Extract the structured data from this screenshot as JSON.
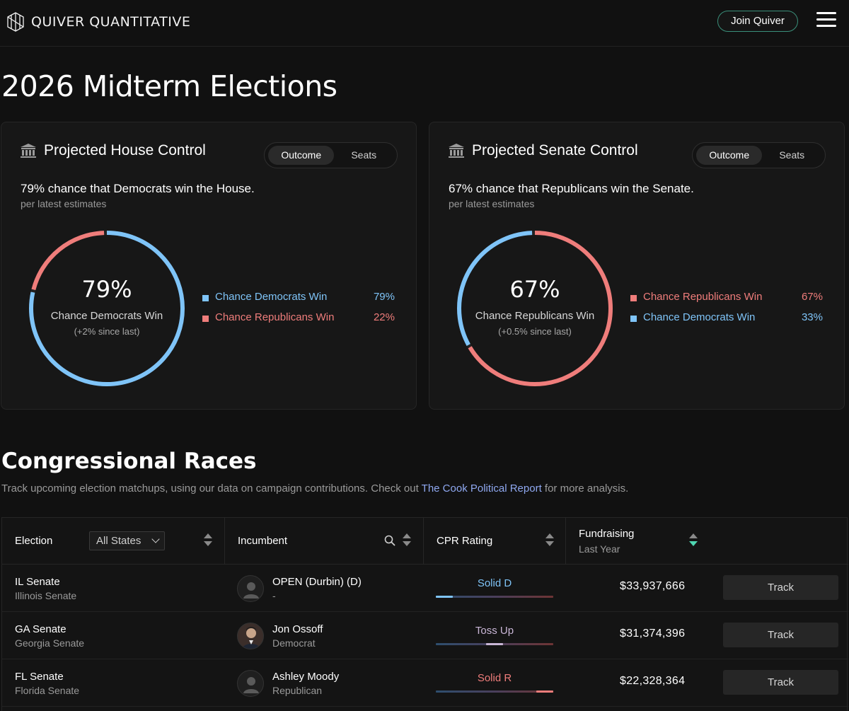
{
  "header": {
    "brand": "QUIVER QUANTITATIVE",
    "join_label": "Join Quiver"
  },
  "page_title": "2026 Midterm Elections",
  "house": {
    "title": "Projected House Control",
    "toggle": [
      "Outcome",
      "Seats"
    ],
    "stat": "79% chance that Democrats win the House.",
    "sub": "per latest estimates",
    "center_pct": "79%",
    "center_label": "Chance Democrats Win",
    "center_delta": "(+2% since last)",
    "legend": [
      {
        "label": "Chance Democrats Win",
        "value": "79%",
        "color": "#7fc4f8"
      },
      {
        "label": "Chance Republicans Win",
        "value": "22%",
        "color": "#ef7d7b"
      }
    ],
    "chart_fraction_primary": 0.79
  },
  "senate": {
    "title": "Projected Senate Control",
    "toggle": [
      "Outcome",
      "Seats"
    ],
    "stat": "67% chance that Republicans win the Senate.",
    "sub": "per latest estimates",
    "center_pct": "67%",
    "center_label": "Chance Republicans Win",
    "center_delta": "(+0.5% since last)",
    "legend": [
      {
        "label": "Chance Republicans Win",
        "value": "67%",
        "color": "#ef7d7b"
      },
      {
        "label": "Chance Democrats Win",
        "value": "33%",
        "color": "#7fc4f8"
      }
    ],
    "chart_fraction_primary": 0.67
  },
  "races": {
    "title": "Congressional Races",
    "desc_before": "Track upcoming election matchups, using our data on campaign contributions. Check out ",
    "desc_link": "The Cook Political Report",
    "desc_after": " for more analysis.",
    "columns": {
      "election": "Election",
      "state_filter": "All States",
      "incumbent": "Incumbent",
      "rating": "CPR Rating",
      "fundraising": "Fundraising",
      "fundraising_sub": "Last Year"
    },
    "rows": [
      {
        "race": "IL Senate",
        "race_sub": "Illinois Senate",
        "incumbent": "OPEN (Durbin) (D)",
        "incumbent_sub": "-",
        "rating": "Solid D",
        "rating_color": "#7fc4f8",
        "funding": "$33,937,666",
        "track": "Track"
      },
      {
        "race": "GA Senate",
        "race_sub": "Georgia Senate",
        "incumbent": "Jon Ossoff",
        "incumbent_sub": "Democrat",
        "rating": "Toss Up",
        "rating_color": "#c9b6d6",
        "funding": "$31,374,396",
        "track": "Track"
      },
      {
        "race": "FL Senate",
        "race_sub": "Florida Senate",
        "incumbent": "Ashley Moody",
        "incumbent_sub": "Republican",
        "rating": "Solid R",
        "rating_color": "#ef7d7b",
        "funding": "$22,328,364",
        "track": "Track"
      }
    ]
  }
}
